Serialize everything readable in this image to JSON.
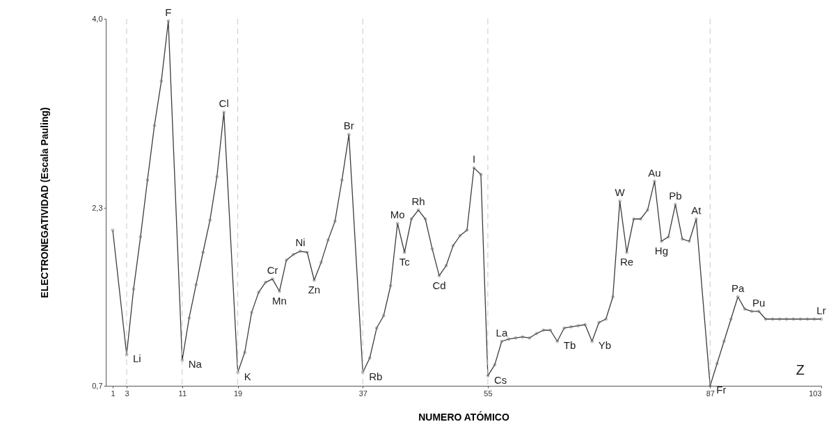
{
  "chart_data": {
    "type": "line",
    "xlabel": "NUMERO ATÓMICO",
    "ylabel": "ELECTRONEGATIVIDAD (Escala Pauling)",
    "xlim": [
      0,
      103
    ],
    "xticks": [
      1,
      3,
      11,
      19,
      37,
      55,
      87,
      103
    ],
    "ylim": [
      0.7,
      4.0
    ],
    "yticks": [
      {
        "value": 0.7,
        "label": "0,7"
      },
      {
        "value": 2.3,
        "label": "2,3"
      },
      {
        "value": 4.0,
        "label": "4,0"
      }
    ],
    "grid": false,
    "marker": "circle",
    "line_style": "solid",
    "series": [
      {
        "color": "#3c3c3c",
        "x": [
          1,
          3,
          4,
          5,
          6,
          7,
          8,
          9,
          11,
          12,
          13,
          14,
          15,
          16,
          17,
          19,
          20,
          21,
          22,
          23,
          24,
          25,
          26,
          27,
          28,
          29,
          30,
          31,
          32,
          33,
          34,
          35,
          37,
          38,
          39,
          40,
          41,
          42,
          43,
          44,
          45,
          46,
          47,
          48,
          49,
          50,
          51,
          52,
          53,
          54,
          55,
          56,
          57,
          58,
          59,
          60,
          61,
          62,
          63,
          64,
          65,
          66,
          67,
          68,
          69,
          70,
          71,
          72,
          73,
          74,
          75,
          76,
          77,
          78,
          79,
          80,
          81,
          82,
          83,
          84,
          85,
          87,
          88,
          89,
          90,
          91,
          92,
          93,
          94,
          95,
          96,
          97,
          98,
          99,
          100,
          101,
          102,
          103
        ],
        "values": [
          2.1,
          0.98,
          1.57,
          2.04,
          2.55,
          3.04,
          3.44,
          3.98,
          0.93,
          1.31,
          1.61,
          1.9,
          2.19,
          2.58,
          3.16,
          0.82,
          1.0,
          1.36,
          1.54,
          1.63,
          1.66,
          1.55,
          1.83,
          1.88,
          1.91,
          1.9,
          1.65,
          1.81,
          2.01,
          2.18,
          2.55,
          2.96,
          0.82,
          0.95,
          1.22,
          1.33,
          1.6,
          2.16,
          1.9,
          2.2,
          2.28,
          2.2,
          1.93,
          1.69,
          1.78,
          1.96,
          2.05,
          2.1,
          2.66,
          2.6,
          0.79,
          0.89,
          1.1,
          1.12,
          1.13,
          1.14,
          1.13,
          1.17,
          1.2,
          1.2,
          1.1,
          1.22,
          1.23,
          1.24,
          1.25,
          1.1,
          1.27,
          1.3,
          1.5,
          2.36,
          1.9,
          2.2,
          2.2,
          2.28,
          2.54,
          2.0,
          2.04,
          2.33,
          2.02,
          2.0,
          2.2,
          0.7,
          0.9,
          1.1,
          1.3,
          1.5,
          1.39,
          1.37,
          1.37,
          1.3,
          1.3,
          1.3,
          1.3,
          1.3,
          1.3,
          1.3,
          1.3,
          1.3
        ]
      }
    ],
    "ref_lines": [
      {
        "axis": "x",
        "value": 3,
        "color": "#c8c8c8",
        "line_style": "dashed"
      },
      {
        "axis": "x",
        "value": 11,
        "color": "#c8c8c8",
        "line_style": "dashed"
      },
      {
        "axis": "x",
        "value": 19,
        "color": "#c8c8c8",
        "line_style": "dashed"
      },
      {
        "axis": "x",
        "value": 37,
        "color": "#c8c8c8",
        "line_style": "dashed"
      },
      {
        "axis": "x",
        "value": 55,
        "color": "#c8c8c8",
        "line_style": "dashed"
      },
      {
        "axis": "x",
        "value": 87,
        "color": "#c8c8c8",
        "line_style": "dashed"
      }
    ],
    "annotations": [
      {
        "text": "Li",
        "x": 3,
        "y": 0.98
      },
      {
        "text": "F",
        "x": 9,
        "y": 3.98
      },
      {
        "text": "Na",
        "x": 11,
        "y": 0.93
      },
      {
        "text": "Cl",
        "x": 17,
        "y": 3.16
      },
      {
        "text": "K",
        "x": 19,
        "y": 0.82
      },
      {
        "text": "Cr",
        "x": 24,
        "y": 1.66
      },
      {
        "text": "Mn",
        "x": 25,
        "y": 1.55
      },
      {
        "text": "Ni",
        "x": 28,
        "y": 1.91
      },
      {
        "text": "Zn",
        "x": 30,
        "y": 1.65
      },
      {
        "text": "Br",
        "x": 35,
        "y": 2.96
      },
      {
        "text": "Rb",
        "x": 37,
        "y": 0.82
      },
      {
        "text": "Mo",
        "x": 42,
        "y": 2.16
      },
      {
        "text": "Tc",
        "x": 43,
        "y": 1.9
      },
      {
        "text": "Rh",
        "x": 45,
        "y": 2.28
      },
      {
        "text": "Cd",
        "x": 48,
        "y": 1.69
      },
      {
        "text": "I",
        "x": 53,
        "y": 2.66
      },
      {
        "text": "Cs",
        "x": 55,
        "y": 0.79
      },
      {
        "text": "La",
        "x": 57,
        "y": 1.1
      },
      {
        "text": "Tb",
        "x": 65,
        "y": 1.1
      },
      {
        "text": "Yb",
        "x": 70,
        "y": 1.1
      },
      {
        "text": "W",
        "x": 74,
        "y": 2.36
      },
      {
        "text": "Re",
        "x": 75,
        "y": 1.9
      },
      {
        "text": "Au",
        "x": 79,
        "y": 2.54
      },
      {
        "text": "Hg",
        "x": 80,
        "y": 2.0
      },
      {
        "text": "Pb",
        "x": 82,
        "y": 2.33
      },
      {
        "text": "At",
        "x": 85,
        "y": 2.2
      },
      {
        "text": "Fr",
        "x": 87,
        "y": 0.7
      },
      {
        "text": "Pa",
        "x": 91,
        "y": 1.5
      },
      {
        "text": "Pu",
        "x": 94,
        "y": 1.37
      },
      {
        "text": "Lr",
        "x": 103,
        "y": 1.3
      },
      "Z"
    ]
  }
}
